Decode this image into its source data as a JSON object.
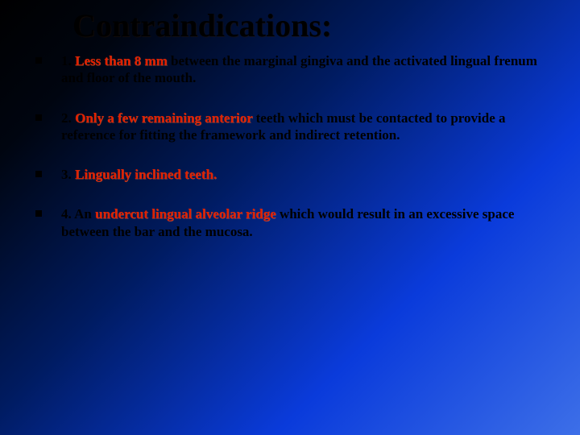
{
  "slide": {
    "title": "Contraindications:",
    "background": {
      "gradient_stops": [
        "#000000",
        "#001b60",
        "#0a3bdb",
        "#3d6fe8"
      ],
      "direction": "diagonal-top-left-to-bottom-right"
    },
    "title_color": "#000000",
    "body_text_color": "#000000",
    "highlight_color": "#e02000",
    "title_fontsize_pt": 30,
    "body_fontsize_pt": 13,
    "font_family": "Times New Roman",
    "bullets": [
      {
        "n": "1.",
        "pre_space": " ",
        "hl": "Less than 8 mm",
        "rest": " between the marginal gingiva and the activated lingual frenum and floor of the mouth."
      },
      {
        "n": "2.",
        "pre_space": "",
        "hl": "Only a few remaining anterior",
        "rest": " teeth which must be contacted to provide a reference for fitting the framework and indirect retention."
      },
      {
        "n": "3.",
        "pre_space": "",
        "hl": "Lingually inclined teeth.",
        "rest": ""
      },
      {
        "n": "4.",
        "pre_space": "",
        "lead": "An ",
        "hl": "undercut lingual alveolar ridge",
        "rest": " which would result in an excessive space between the bar and the mucosa."
      }
    ]
  }
}
